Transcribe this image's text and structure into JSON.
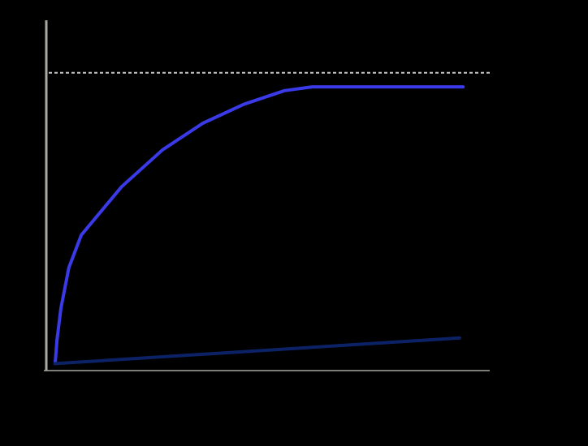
{
  "chart_data": {
    "type": "line",
    "xlim": [
      0,
      100
    ],
    "ylim": [
      0,
      100
    ],
    "background": "#000000",
    "axis_color": "#a8a8a0",
    "reference_line": {
      "value": 85,
      "color": "#c8c8c8",
      "style": "dotted"
    },
    "series": [
      {
        "color": "#3a3ae8",
        "x": [
          2,
          2.4,
          3.3,
          5.1,
          7.9,
          17,
          26.2,
          35.3,
          44.5,
          53.7,
          60,
          94
        ],
        "values": [
          2,
          8.6,
          17.8,
          29.4,
          38.7,
          52.5,
          63,
          70.6,
          76,
          79.9,
          81,
          81
        ]
      },
      {
        "color": "#0c2266",
        "x": [
          2,
          93.2
        ],
        "values": [
          2,
          9.3
        ]
      }
    ]
  }
}
